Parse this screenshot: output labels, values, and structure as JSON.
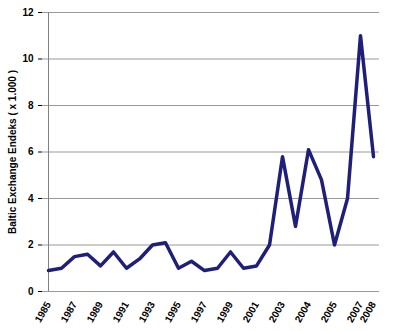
{
  "chart_data": {
    "type": "line",
    "y_label": "Baltic Exchange Endeks ( x 1.000 )",
    "categories": [
      "1985",
      null,
      "1987",
      null,
      "1989",
      null,
      "1991",
      null,
      "1993",
      null,
      "1995",
      null,
      "1997",
      null,
      "1999",
      null,
      "2001",
      null,
      "2003",
      null,
      "2004",
      null,
      "2005",
      null,
      "2007",
      "2008"
    ],
    "values": [
      0.9,
      1.0,
      1.5,
      1.6,
      1.1,
      1.7,
      1.0,
      1.4,
      2.0,
      2.1,
      1.0,
      1.3,
      0.9,
      1.0,
      1.7,
      1.0,
      1.1,
      2.0,
      5.8,
      2.8,
      6.1,
      4.8,
      2.0,
      4.0,
      11.0,
      5.8
    ],
    "color": "#1f1f7a",
    "ylim": [
      0,
      12
    ],
    "yticks": [
      0,
      2,
      4,
      6,
      8,
      10,
      12
    ],
    "grid": true
  }
}
